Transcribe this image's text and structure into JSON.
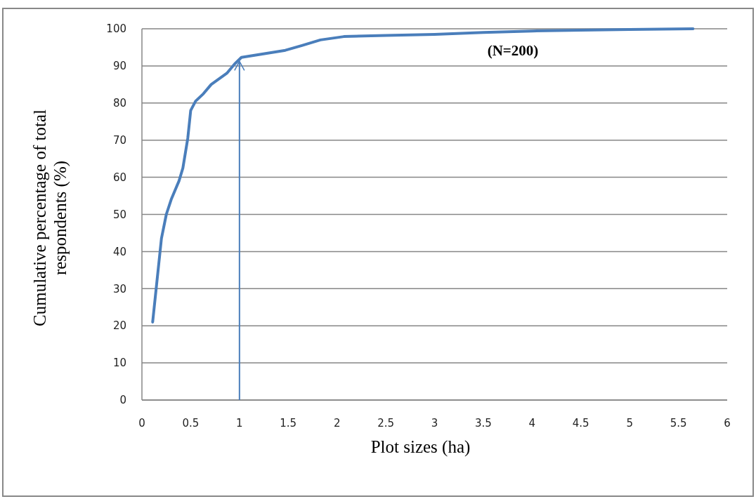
{
  "chart_data": {
    "type": "line",
    "xlabel": "Plot sizes (ha)",
    "ylabel": "Cumulative percentage of total respondents (%)",
    "annotations": [
      "(N=200)"
    ],
    "series": [
      {
        "color": "#4a7ebb",
        "x": [
          0.11,
          0.15,
          0.2,
          0.25,
          0.3,
          0.38,
          0.42,
          0.47,
          0.5,
          0.55,
          0.63,
          0.71,
          0.87,
          0.95,
          1.02,
          1.47,
          1.64,
          1.83,
          2.07,
          2.5,
          3,
          3.5,
          4,
          4.5,
          5,
          5.65
        ],
        "values": [
          21,
          31,
          43.5,
          50,
          54,
          59,
          62.5,
          70.5,
          78,
          80.5,
          82.5,
          85,
          88,
          90.5,
          92.3,
          94.2,
          95.5,
          97,
          97.9,
          98.2,
          98.5,
          99,
          99.4,
          99.6,
          99.8,
          100
        ]
      }
    ],
    "xlim": [
      0,
      6
    ],
    "xticks": [
      0,
      0.5,
      1,
      1.5,
      2,
      2.5,
      3,
      3.5,
      4,
      4.5,
      5,
      5.5,
      6
    ],
    "ylim": [
      0,
      100
    ],
    "yticks": [
      0,
      10,
      20,
      30,
      40,
      50,
      60,
      70,
      80,
      90,
      100
    ],
    "grid": "y",
    "line_style": "solid",
    "marker": "none",
    "ref_lines": [
      {
        "axis": "x",
        "value": 1,
        "color": "#4a7ebb"
      }
    ]
  }
}
